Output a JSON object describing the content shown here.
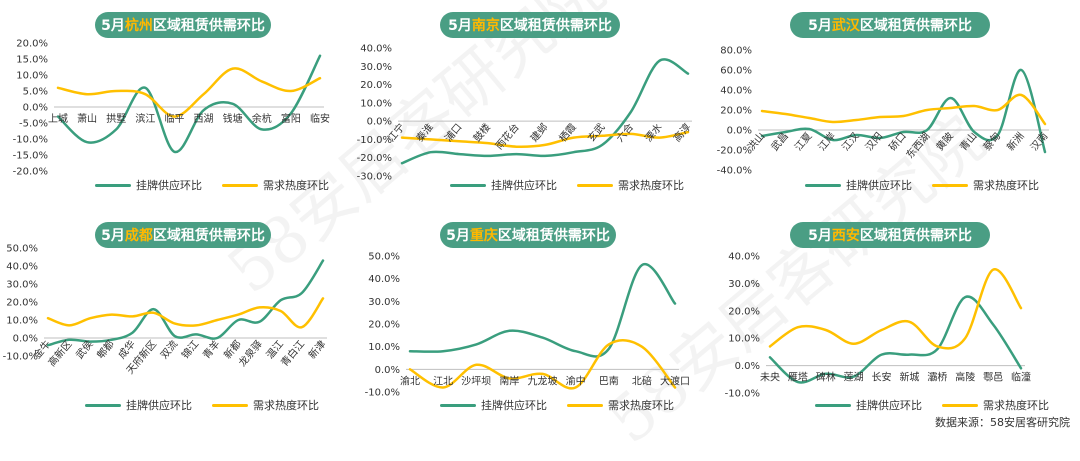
{
  "source": "数据来源：58安居客研究院",
  "watermark": "58安居客研究院",
  "colors": {
    "supply": "#3a9e7e",
    "demand": "#ffc000",
    "pill": "#4a9e84",
    "highlight": "#ffb800"
  },
  "chart_data": [
    {
      "type": "line",
      "title_prefix": "5月",
      "title_city": "杭州",
      "title_suffix": "区域租赁供需环比",
      "categories": [
        "上城",
        "萧山",
        "拱墅",
        "滨江",
        "临平",
        "西湖",
        "钱塘",
        "余杭",
        "富阳",
        "临安"
      ],
      "ylim": [
        -0.2,
        0.2
      ],
      "yticks": [
        0.2,
        0.15,
        0.1,
        0.05,
        0,
        -0.05,
        -0.1,
        -0.15,
        -0.2
      ],
      "ytick_labels": [
        "20.0%",
        "15.0%",
        "10.0%",
        "5.0%",
        "0.0%",
        "-5.0%",
        "-10.0%",
        "-15.0%",
        "-20.0%"
      ],
      "series": [
        {
          "name": "挂牌供应环比",
          "values": [
            -0.03,
            -0.11,
            -0.07,
            0.06,
            -0.14,
            -0.01,
            0.01,
            -0.07,
            -0.02,
            0.16
          ]
        },
        {
          "name": "需求热度环比",
          "values": [
            0.06,
            0.04,
            0.05,
            0.04,
            -0.03,
            0.04,
            0.12,
            0.08,
            0.05,
            0.09
          ]
        }
      ]
    },
    {
      "type": "line",
      "title_prefix": "5月",
      "title_city": "南京",
      "title_suffix": "区域租赁供需环比",
      "categories": [
        "江宁",
        "秦淮",
        "浦口",
        "鼓楼",
        "雨花台",
        "建邺",
        "栖霞",
        "玄武",
        "六合",
        "溧水",
        "高淳"
      ],
      "ylim": [
        -0.3,
        0.4
      ],
      "yticks": [
        0.4,
        0.3,
        0.2,
        0.1,
        0,
        -0.1,
        -0.2,
        -0.3
      ],
      "ytick_labels": [
        "40.0%",
        "30.0%",
        "20.0%",
        "10.0%",
        "0.0%",
        "-10.0%",
        "-20.0%",
        "-30.0%"
      ],
      "series": [
        {
          "name": "挂牌供应环比",
          "values": [
            -0.23,
            -0.17,
            -0.18,
            -0.19,
            -0.18,
            -0.19,
            -0.17,
            -0.13,
            0.05,
            0.33,
            0.26
          ]
        },
        {
          "name": "需求热度环比",
          "values": [
            -0.09,
            -0.1,
            -0.11,
            -0.12,
            -0.14,
            -0.13,
            -0.09,
            -0.08,
            -0.07,
            -0.09,
            -0.06
          ]
        }
      ]
    },
    {
      "type": "line",
      "title_prefix": "5月",
      "title_city": "武汉",
      "title_suffix": "区域租赁供需环比",
      "categories": [
        "洪山",
        "武昌",
        "江夏",
        "江岸",
        "江汉",
        "汉阳",
        "硚口",
        "东西湖",
        "黄陂",
        "青山",
        "蔡甸",
        "新洲",
        "汉南"
      ],
      "ylim": [
        -0.4,
        0.8
      ],
      "yticks": [
        0.8,
        0.6,
        0.4,
        0.2,
        0,
        -0.2,
        -0.4
      ],
      "ytick_labels": [
        "80.0%",
        "60.0%",
        "40.0%",
        "20.0%",
        "0.0%",
        "-20.0%",
        "-40.0%"
      ],
      "series": [
        {
          "name": "挂牌供应环比",
          "values": [
            -0.06,
            -0.02,
            0.01,
            -0.1,
            -0.05,
            -0.08,
            -0.02,
            0.0,
            0.32,
            -0.02,
            -0.05,
            0.6,
            -0.22
          ]
        },
        {
          "name": "需求热度环比",
          "values": [
            0.19,
            0.16,
            0.12,
            0.08,
            0.1,
            0.13,
            0.14,
            0.2,
            0.22,
            0.24,
            0.2,
            0.35,
            0.06
          ]
        }
      ]
    },
    {
      "type": "line",
      "title_prefix": "5月",
      "title_city": "成都",
      "title_suffix": "区域租赁供需环比",
      "categories": [
        "金牛",
        "高新区",
        "武侯",
        "郫都",
        "成华",
        "天府新区",
        "双流",
        "锦江",
        "青羊",
        "新都",
        "龙泉驿",
        "温江",
        "青白江",
        "新津"
      ],
      "ylim": [
        -0.1,
        0.5
      ],
      "yticks": [
        0.5,
        0.4,
        0.3,
        0.2,
        0.1,
        0,
        -0.1
      ],
      "ytick_labels": [
        "50.0%",
        "40.0%",
        "30.0%",
        "20.0%",
        "10.0%",
        "0.0%",
        "-10.0%"
      ],
      "series": [
        {
          "name": "挂牌供应环比",
          "values": [
            -0.04,
            -0.01,
            -0.02,
            -0.01,
            0.03,
            0.16,
            0.01,
            0.02,
            0.0,
            0.1,
            0.09,
            0.21,
            0.25,
            0.43
          ]
        },
        {
          "name": "需求热度环比",
          "values": [
            0.11,
            0.07,
            0.11,
            0.13,
            0.12,
            0.14,
            0.08,
            0.07,
            0.1,
            0.13,
            0.17,
            0.15,
            0.06,
            0.22
          ]
        }
      ]
    },
    {
      "type": "line",
      "title_prefix": "5月",
      "title_city": "重庆",
      "title_suffix": "区域租赁供需环比",
      "categories": [
        "渝北",
        "江北",
        "沙坪坝",
        "南岸",
        "九龙坡",
        "渝中",
        "巴南",
        "北碚",
        "大渡口"
      ],
      "ylim": [
        -0.1,
        0.5
      ],
      "yticks": [
        0.5,
        0.4,
        0.3,
        0.2,
        0.1,
        0,
        -0.1
      ],
      "ytick_labels": [
        "50.0%",
        "40.0%",
        "30.0%",
        "20.0%",
        "10.0%",
        "0.0%",
        "-10.0%"
      ],
      "series": [
        {
          "name": "挂牌供应环比",
          "values": [
            0.08,
            0.08,
            0.11,
            0.17,
            0.14,
            0.08,
            0.09,
            0.46,
            0.29
          ]
        },
        {
          "name": "需求热度环比",
          "values": [
            0.0,
            -0.08,
            0.02,
            -0.04,
            -0.02,
            -0.08,
            0.11,
            0.1,
            -0.08
          ]
        }
      ]
    },
    {
      "type": "line",
      "title_prefix": "5月",
      "title_city": "西安",
      "title_suffix": "区域租赁供需环比",
      "categories": [
        "未央",
        "雁塔",
        "碑林",
        "莲湖",
        "长安",
        "新城",
        "灞桥",
        "高陵",
        "鄠邑",
        "临潼"
      ],
      "ylim": [
        -0.1,
        0.4
      ],
      "yticks": [
        0.4,
        0.3,
        0.2,
        0.1,
        0,
        -0.1
      ],
      "ytick_labels": [
        "40.0%",
        "30.0%",
        "20.0%",
        "10.0%",
        "0.0%",
        "-10.0%"
      ],
      "series": [
        {
          "name": "挂牌供应环比",
          "values": [
            0.03,
            -0.06,
            -0.03,
            -0.04,
            0.04,
            0.04,
            0.06,
            0.25,
            0.15,
            -0.01
          ]
        },
        {
          "name": "需求热度环比",
          "values": [
            0.07,
            0.14,
            0.13,
            0.08,
            0.13,
            0.16,
            0.07,
            0.1,
            0.35,
            0.21
          ]
        }
      ]
    }
  ]
}
